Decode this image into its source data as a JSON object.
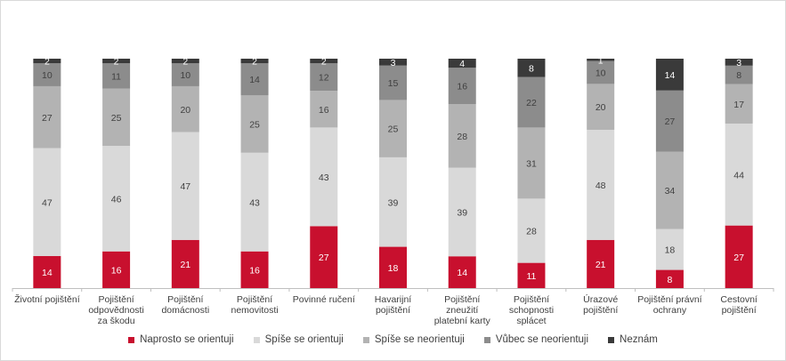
{
  "chart_data": {
    "type": "bar",
    "stacked": true,
    "percent": true,
    "categories": [
      [
        "Životní pojištění"
      ],
      [
        "Pojištění",
        "odpovědnosti",
        "za škodu"
      ],
      [
        "Pojištění",
        "domácnosti"
      ],
      [
        "Pojištění",
        "nemovitosti"
      ],
      [
        "Povinné ručení"
      ],
      [
        "Havarijní",
        "pojištění"
      ],
      [
        "Pojištění",
        "zneužití",
        "platební karty"
      ],
      [
        "Pojištění",
        "schopnosti",
        "splácet"
      ],
      [
        "Úrazové",
        "pojištění"
      ],
      [
        "Pojištění právní",
        "ochrany"
      ],
      [
        "Cestovní",
        "pojištění"
      ]
    ],
    "series": [
      {
        "name": "Naprosto se orientuji",
        "color": "#c8102e",
        "values": [
          14,
          16,
          21,
          16,
          27,
          18,
          14,
          11,
          21,
          8,
          27
        ]
      },
      {
        "name": "Spíše se orientuji",
        "color": "#d9d9d9",
        "values": [
          47,
          46,
          47,
          43,
          43,
          39,
          39,
          28,
          48,
          18,
          44
        ]
      },
      {
        "name": "Spíše se neorientuji",
        "color": "#b3b3b3",
        "values": [
          27,
          25,
          20,
          25,
          16,
          25,
          28,
          31,
          20,
          34,
          17
        ]
      },
      {
        "name": "Vůbec se neorientuji",
        "color": "#8c8c8c",
        "values": [
          10,
          11,
          10,
          14,
          12,
          15,
          16,
          22,
          10,
          27,
          8
        ]
      },
      {
        "name": "Neznám",
        "color": "#3a3a3a",
        "values": [
          2,
          2,
          2,
          2,
          2,
          3,
          4,
          8,
          1,
          14,
          3
        ]
      }
    ],
    "label_colors": [
      "#ffffff",
      "#404040",
      "#404040",
      "#404040",
      "#ffffff"
    ],
    "ylim": [
      0,
      100
    ],
    "legend_position": "bottom",
    "grid": false
  }
}
